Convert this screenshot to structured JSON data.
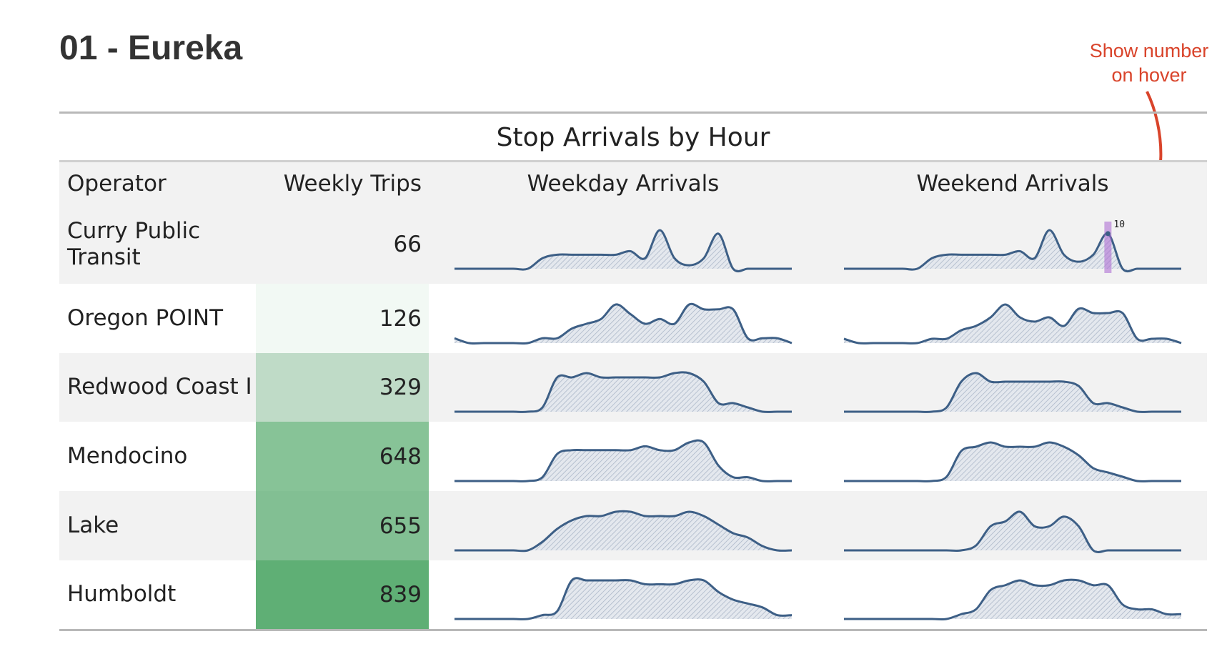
{
  "header": {
    "title": "01 - Eureka"
  },
  "annotation": {
    "lines": [
      "Show number",
      "on hover"
    ],
    "color": "#d9442b"
  },
  "table": {
    "caption": "Stop Arrivals by Hour",
    "columns": [
      "Operator",
      "Weekly Trips",
      "Weekday Arrivals",
      "Weekend Arrivals"
    ],
    "line_color": "#3d5f86",
    "cell_color": "#5faf75",
    "hover": {
      "row": 0,
      "column": "weekend",
      "hour": 18
    },
    "rows": [
      {
        "operator": "Curry Public Transit",
        "weekly_trips": 66,
        "weekday": [
          0,
          0,
          0,
          0,
          0,
          0,
          3,
          4,
          4,
          4,
          4,
          4,
          5,
          3,
          11,
          3,
          1,
          3,
          10,
          0,
          0,
          0,
          0,
          0
        ],
        "weekend": [
          0,
          0,
          0,
          0,
          0,
          0,
          3,
          4,
          4,
          4,
          4,
          4,
          5,
          3,
          11,
          4,
          2,
          4,
          10,
          0,
          0,
          0,
          0,
          0
        ]
      },
      {
        "operator": "Oregon POINT",
        "weekly_trips": 126,
        "weekday": [
          1,
          0,
          0,
          0,
          0,
          0,
          1,
          1,
          3,
          4,
          5,
          8,
          6,
          4,
          5,
          4,
          8,
          7,
          7,
          7,
          1,
          1,
          1,
          0
        ],
        "weekend": [
          1,
          0,
          0,
          0,
          0,
          0,
          1,
          1,
          3,
          4,
          6,
          9,
          6,
          5,
          6,
          4,
          8,
          7,
          7,
          7,
          1,
          1,
          1,
          0
        ]
      },
      {
        "operator": "Redwood Coast I",
        "weekly_trips": 329,
        "weekday": [
          0,
          0,
          0,
          0,
          0,
          0,
          1,
          8,
          8,
          9,
          8,
          8,
          8,
          8,
          8,
          9,
          9,
          7,
          2,
          2,
          1,
          0,
          0,
          0
        ],
        "weekend": [
          0,
          0,
          0,
          0,
          0,
          0,
          0,
          1,
          7,
          9,
          7,
          7,
          7,
          7,
          7,
          7,
          6,
          2,
          2,
          1,
          0,
          0,
          0,
          0
        ]
      },
      {
        "operator": "Mendocino",
        "weekly_trips": 648,
        "weekday": [
          0,
          0,
          0,
          0,
          0,
          0,
          1,
          7,
          8,
          8,
          8,
          8,
          8,
          9,
          8,
          8,
          10,
          10,
          4,
          1,
          1,
          0,
          0,
          0
        ],
        "weekend": [
          0,
          0,
          0,
          0,
          0,
          0,
          0,
          1,
          7,
          8,
          9,
          8,
          8,
          8,
          9,
          8,
          6,
          3,
          2,
          1,
          0,
          0,
          0,
          0
        ]
      },
      {
        "operator": "Lake",
        "weekly_trips": 655,
        "weekday": [
          0,
          0,
          0,
          0,
          0,
          0,
          2,
          5,
          7,
          8,
          8,
          9,
          9,
          8,
          8,
          8,
          9,
          8,
          6,
          4,
          3,
          1,
          0,
          0
        ],
        "weekend": [
          0,
          0,
          0,
          0,
          0,
          0,
          0,
          0,
          0,
          1,
          5,
          6,
          8,
          5,
          5,
          7,
          5,
          0,
          0,
          0,
          0,
          0,
          0,
          0
        ]
      },
      {
        "operator": "Humboldt",
        "weekly_trips": 839,
        "weekday": [
          0,
          0,
          0,
          0,
          0,
          0,
          1,
          2,
          10,
          10,
          10,
          10,
          10,
          9,
          9,
          9,
          10,
          10,
          7,
          5,
          4,
          3,
          1,
          1
        ],
        "weekend": [
          0,
          0,
          0,
          0,
          0,
          0,
          0,
          0,
          1,
          2,
          6,
          7,
          8,
          7,
          7,
          8,
          8,
          7,
          7,
          3,
          2,
          2,
          1,
          1
        ]
      }
    ]
  }
}
